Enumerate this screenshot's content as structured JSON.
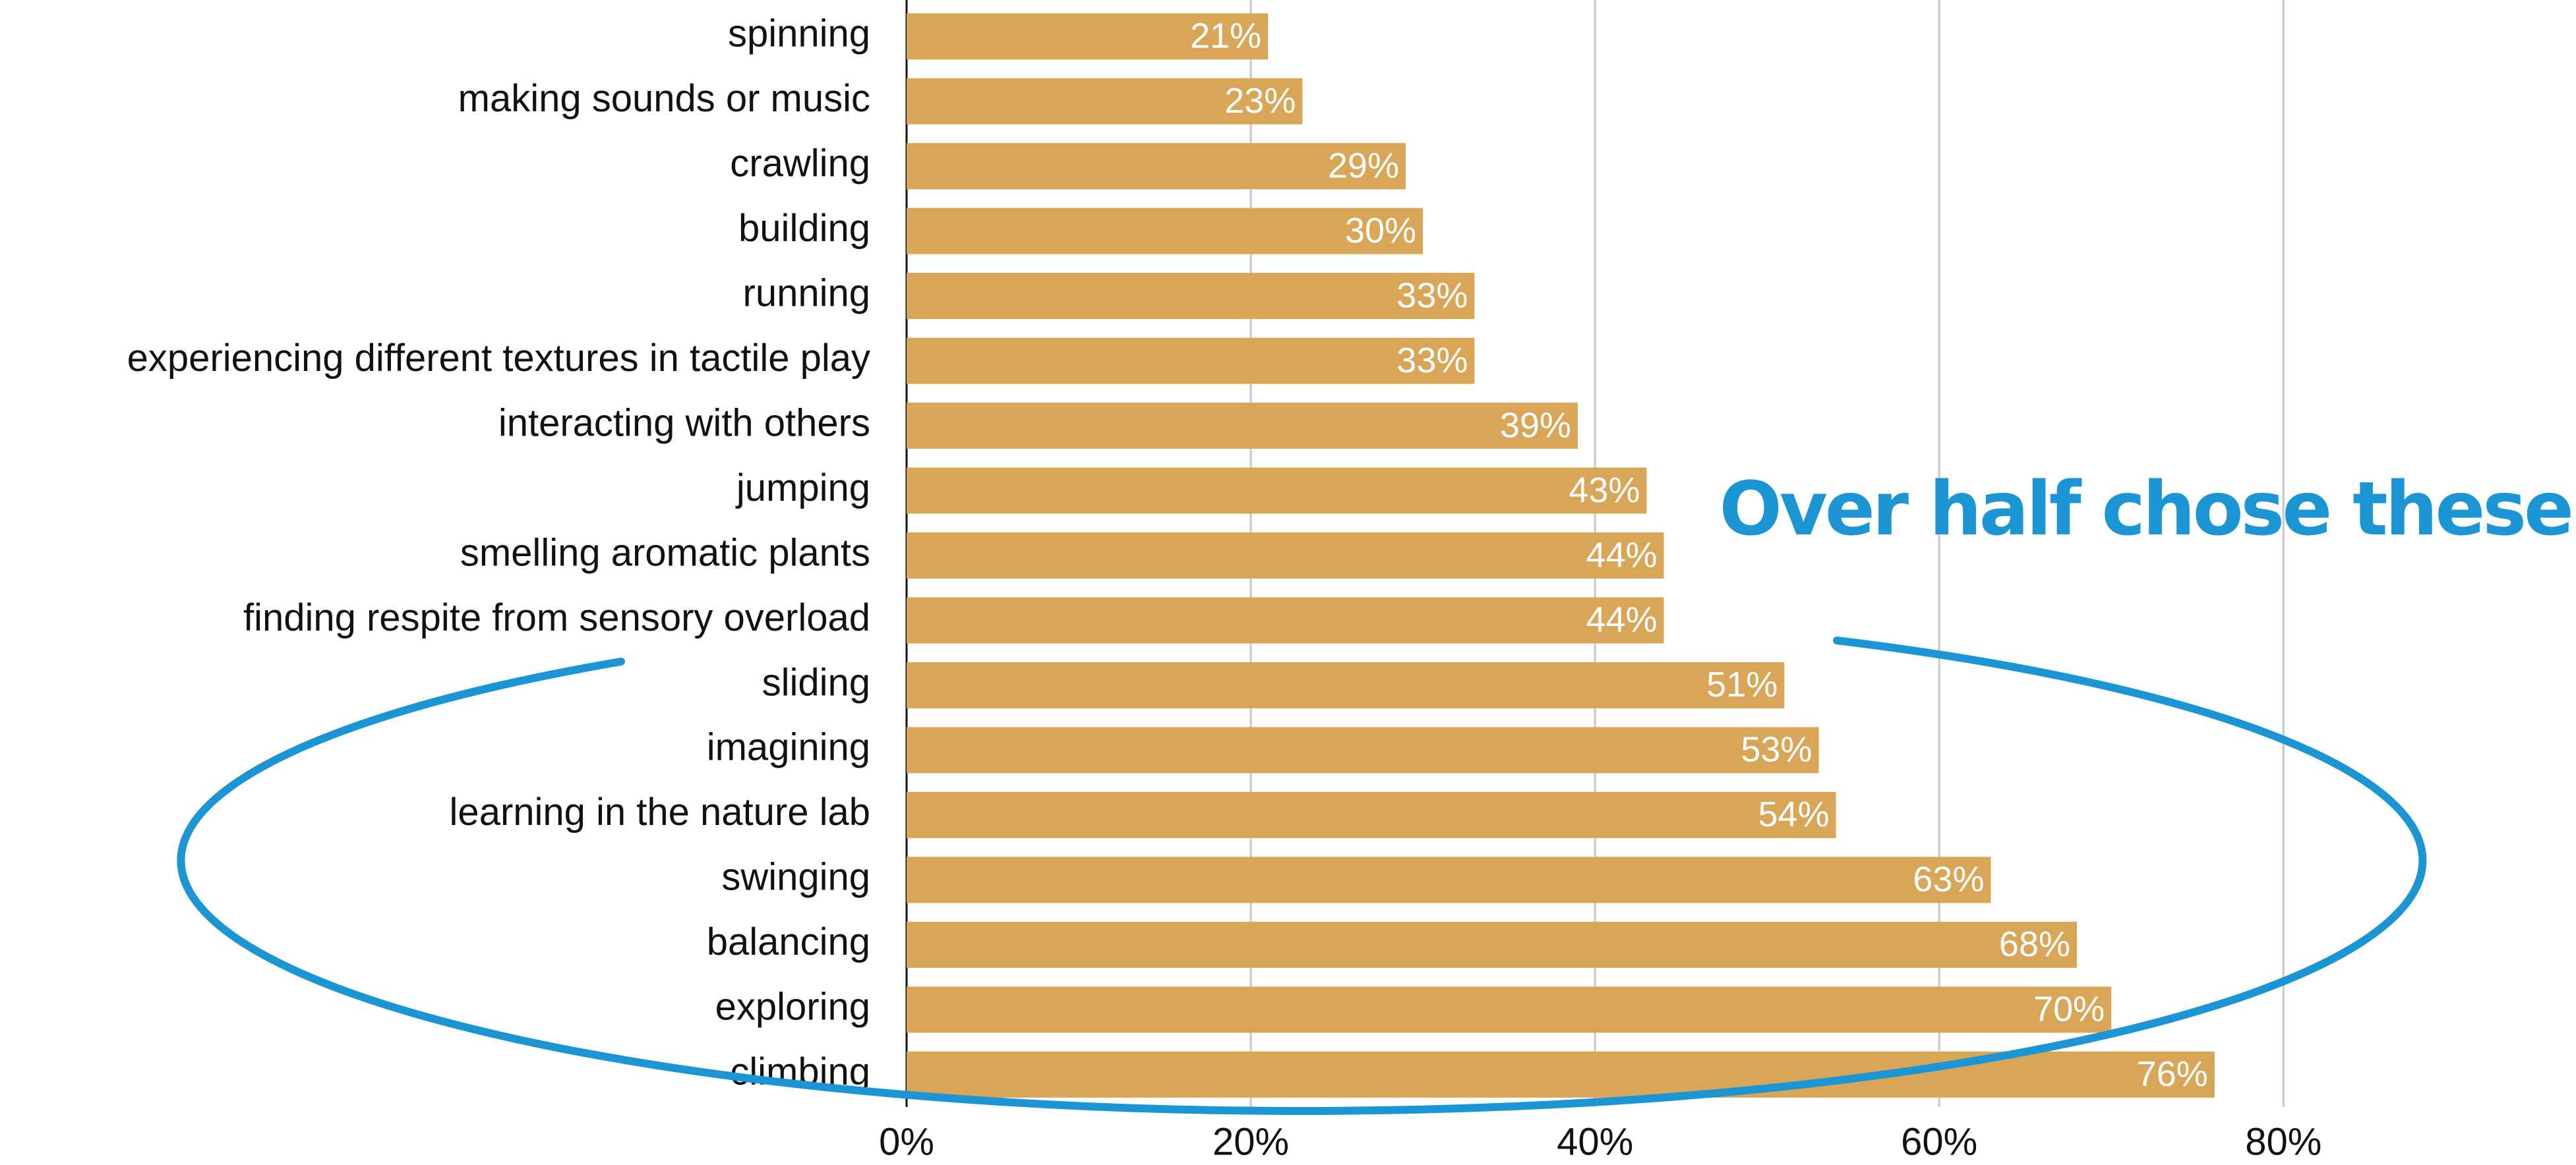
{
  "chart_data": {
    "type": "bar",
    "orientation": "horizontal",
    "categories": [
      "spinning",
      "making sounds or music",
      "crawling",
      "building",
      "running",
      "experiencing different textures in tactile play",
      "interacting with others",
      "jumping",
      "smelling aromatic plants",
      "finding respite from sensory overload",
      "sliding",
      "imagining",
      "learning in the nature lab",
      "swinging",
      "balancing",
      "exploring",
      "climbing"
    ],
    "values": [
      21,
      23,
      29,
      30,
      33,
      33,
      39,
      43,
      44,
      44,
      51,
      53,
      54,
      63,
      68,
      70,
      76
    ],
    "value_labels": [
      "21%",
      "23%",
      "29%",
      "30%",
      "33%",
      "33%",
      "39%",
      "43%",
      "44%",
      "44%",
      "51%",
      "53%",
      "54%",
      "63%",
      "68%",
      "70%",
      "76%"
    ],
    "color": "#d9a557",
    "xlim": [
      0,
      97
    ],
    "xticks": [
      {
        "value": 0,
        "label": "0%"
      },
      {
        "value": 20,
        "label": "20%"
      },
      {
        "value": 40,
        "label": "40%"
      },
      {
        "value": 60,
        "label": "60%"
      },
      {
        "value": 80,
        "label": "80%"
      }
    ],
    "grid": true,
    "annotation": "Over half chose these",
    "annotation_color": "#1b95d3"
  }
}
